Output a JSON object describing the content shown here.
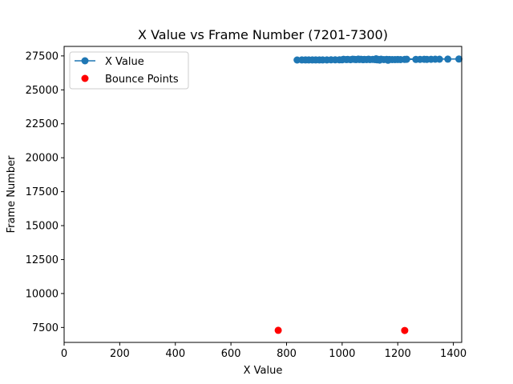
{
  "chart_data": {
    "type": "scatter",
    "title": "X Value vs Frame Number (7201-7300)",
    "xlabel": "X Value",
    "ylabel": "Frame Number",
    "xlim": [
      0,
      1430
    ],
    "ylim": [
      6400,
      28200
    ],
    "xticks": [
      0,
      200,
      400,
      600,
      800,
      1000,
      1200,
      1400
    ],
    "yticks": [
      7500,
      10000,
      12500,
      15000,
      17500,
      20000,
      22500,
      25000,
      27500
    ],
    "grid": false,
    "legend_position": "upper left",
    "series": [
      {
        "name": "X Value",
        "kind": "line-marker",
        "color": "#1f77b4",
        "points": [
          [
            838,
            27201
          ],
          [
            855,
            27202
          ],
          [
            868,
            27204
          ],
          [
            880,
            27203
          ],
          [
            893,
            27205
          ],
          [
            905,
            27206
          ],
          [
            918,
            27204
          ],
          [
            930,
            27207
          ],
          [
            945,
            27206
          ],
          [
            960,
            27208
          ],
          [
            975,
            27210
          ],
          [
            990,
            27212
          ],
          [
            1000,
            27215
          ],
          [
            1005,
            27250
          ],
          [
            1015,
            27230
          ],
          [
            1020,
            27245
          ],
          [
            1030,
            27220
          ],
          [
            1038,
            27260
          ],
          [
            1045,
            27240
          ],
          [
            1050,
            27225
          ],
          [
            1058,
            27265
          ],
          [
            1062,
            27235
          ],
          [
            1068,
            27250
          ],
          [
            1075,
            27220
          ],
          [
            1080,
            27240
          ],
          [
            1088,
            27230
          ],
          [
            1095,
            27255
          ],
          [
            1100,
            27225
          ],
          [
            1110,
            27240
          ],
          [
            1118,
            27230
          ],
          [
            1122,
            27285
          ],
          [
            1126,
            27210
          ],
          [
            1130,
            27245
          ],
          [
            1135,
            27195
          ],
          [
            1140,
            27260
          ],
          [
            1150,
            27225
          ],
          [
            1160,
            27240
          ],
          [
            1165,
            27180
          ],
          [
            1170,
            27235
          ],
          [
            1180,
            27225
          ],
          [
            1190,
            27230
          ],
          [
            1200,
            27235
          ],
          [
            1210,
            27225
          ],
          [
            1225,
            27240
          ],
          [
            1232,
            27250
          ],
          [
            1265,
            27240
          ],
          [
            1280,
            27245
          ],
          [
            1295,
            27250
          ],
          [
            1305,
            27245
          ],
          [
            1320,
            27250
          ],
          [
            1335,
            27255
          ],
          [
            1350,
            27260
          ],
          [
            1380,
            27265
          ],
          [
            1420,
            27270
          ]
        ]
      },
      {
        "name": "Bounce Points",
        "kind": "scatter",
        "color": "#ff0000",
        "points": [
          [
            770,
            7290
          ],
          [
            1225,
            7280
          ]
        ]
      }
    ]
  }
}
